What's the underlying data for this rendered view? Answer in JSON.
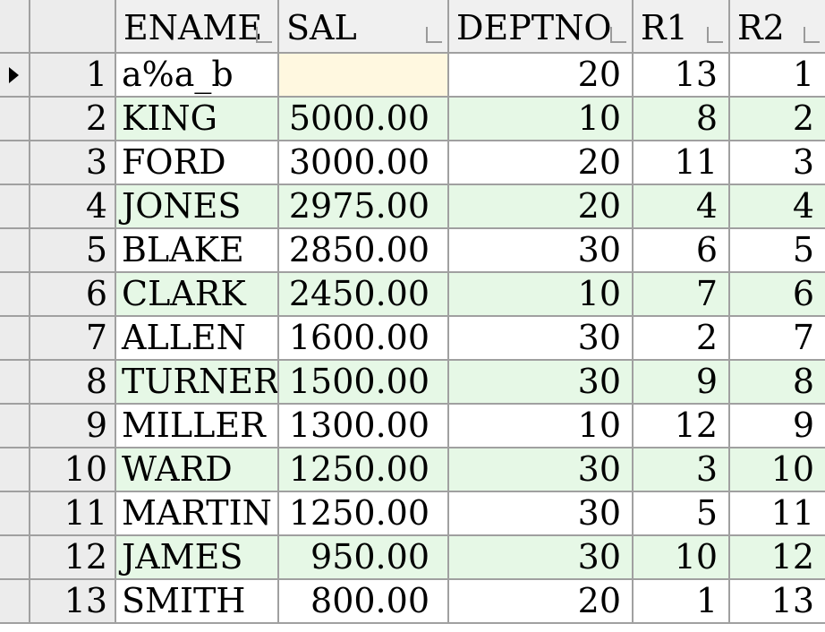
{
  "table": {
    "columns": [
      "ENAME",
      "SAL",
      "DEPTNO",
      "R1",
      "R2"
    ],
    "current_row": 1,
    "rows": [
      {
        "num": "1",
        "ename": "a%a_b",
        "sal": "",
        "deptno": "20",
        "r1": "13",
        "r2": "1"
      },
      {
        "num": "2",
        "ename": "KING",
        "sal": "5000.00",
        "deptno": "10",
        "r1": "8",
        "r2": "2"
      },
      {
        "num": "3",
        "ename": "FORD",
        "sal": "3000.00",
        "deptno": "20",
        "r1": "11",
        "r2": "3"
      },
      {
        "num": "4",
        "ename": "JONES",
        "sal": "2975.00",
        "deptno": "20",
        "r1": "4",
        "r2": "4"
      },
      {
        "num": "5",
        "ename": "BLAKE",
        "sal": "2850.00",
        "deptno": "30",
        "r1": "6",
        "r2": "5"
      },
      {
        "num": "6",
        "ename": "CLARK",
        "sal": "2450.00",
        "deptno": "10",
        "r1": "7",
        "r2": "6"
      },
      {
        "num": "7",
        "ename": "ALLEN",
        "sal": "1600.00",
        "deptno": "30",
        "r1": "2",
        "r2": "7"
      },
      {
        "num": "8",
        "ename": "TURNER",
        "sal": "1500.00",
        "deptno": "30",
        "r1": "9",
        "r2": "8"
      },
      {
        "num": "9",
        "ename": "MILLER",
        "sal": "1300.00",
        "deptno": "10",
        "r1": "12",
        "r2": "9"
      },
      {
        "num": "10",
        "ename": "WARD",
        "sal": "1250.00",
        "deptno": "30",
        "r1": "3",
        "r2": "10"
      },
      {
        "num": "11",
        "ename": "MARTIN",
        "sal": "1250.00",
        "deptno": "30",
        "r1": "5",
        "r2": "11"
      },
      {
        "num": "12",
        "ename": "JAMES",
        "sal": "950.00",
        "deptno": "30",
        "r1": "10",
        "r2": "12"
      },
      {
        "num": "13",
        "ename": "SMITH",
        "sal": "800.00",
        "deptno": "20",
        "r1": "1",
        "r2": "13"
      }
    ]
  },
  "colors": {
    "alt_row": "#e6f8e6",
    "active_cell": "#fff8e0",
    "header_bg": "#f0f0f0",
    "grid_line": "#a0a0a0"
  }
}
